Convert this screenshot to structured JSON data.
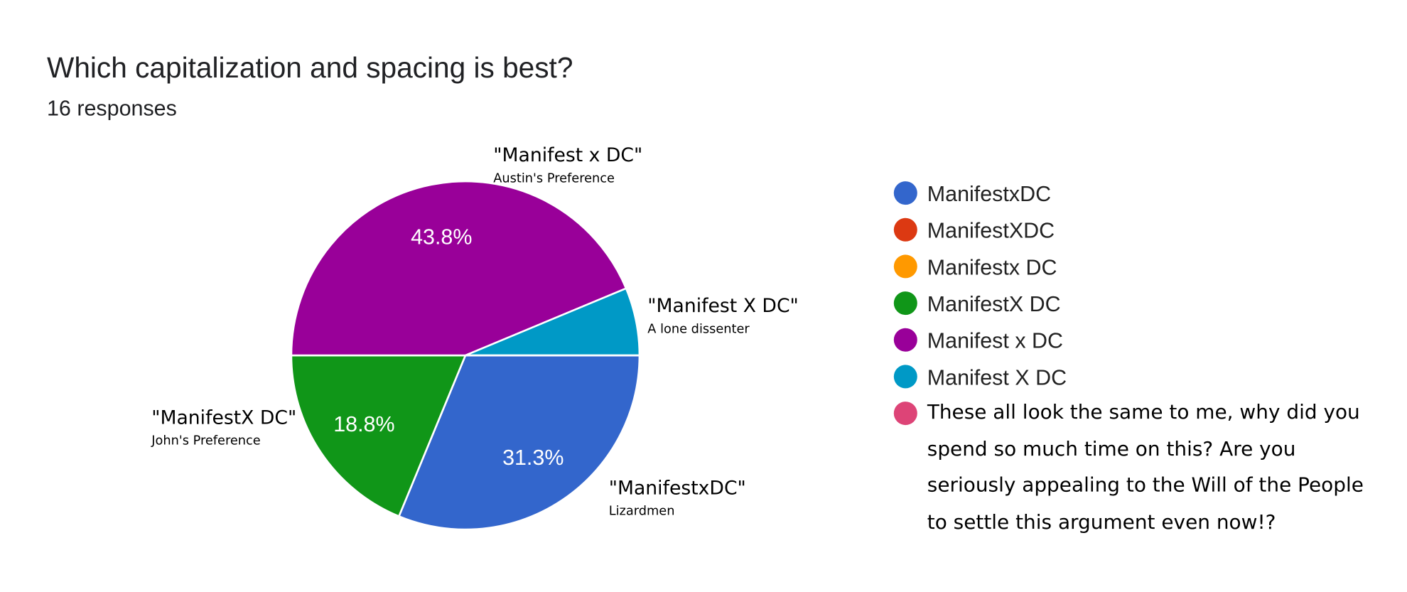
{
  "chart_data": {
    "type": "pie",
    "title": "Which capitalization and spacing is best?",
    "subtitle": "16 responses",
    "categories": [
      "ManifestxDC",
      "ManifestXDC",
      "Manifestx DC",
      "ManifestX DC",
      "Manifest x DC",
      "Manifest X DC",
      "These all look the same to me, why did you spend so much time on this? Are you seriously appealing to the Will of the People to settle this argument even now!?"
    ],
    "values": [
      31.3,
      0,
      0,
      18.8,
      43.8,
      6.3,
      0
    ],
    "value_labels": [
      "31.3%",
      null,
      null,
      "18.8%",
      "43.8%",
      null,
      null
    ],
    "colors": [
      "#3366cc",
      "#dc3912",
      "#ff9900",
      "#109618",
      "#990099",
      "#0099c6",
      "#dd4477"
    ],
    "legend": "right",
    "annotations": [
      {
        "title": "\"ManifestxDC\"",
        "subtitle": "Lizardmen"
      },
      {
        "title": "\"ManifestX DC\"",
        "subtitle": "John's Preference"
      },
      {
        "title": "\"Manifest x DC\"",
        "subtitle": "Austin's Preference"
      },
      {
        "title": "\"Manifest X DC\"",
        "subtitle": "A lone dissenter"
      }
    ]
  }
}
